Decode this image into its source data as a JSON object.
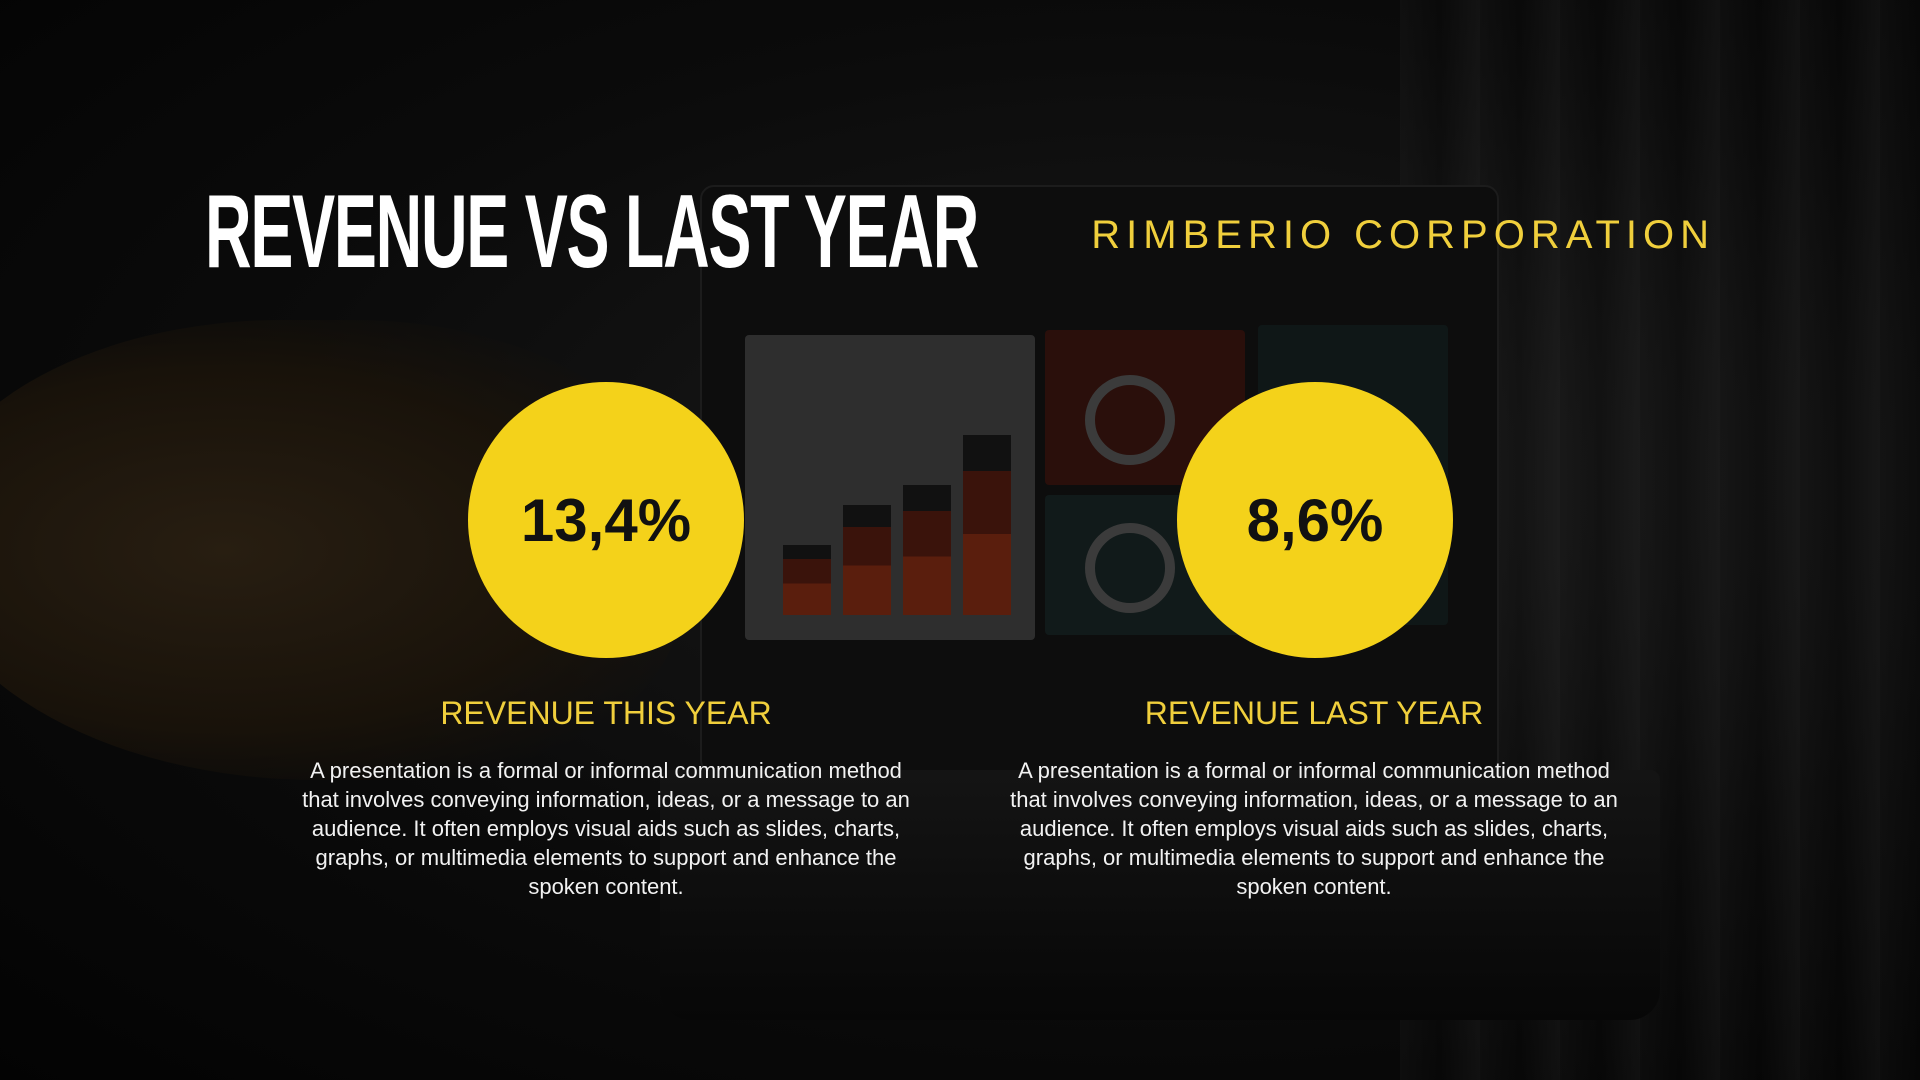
{
  "slide": {
    "title": "REVENUE VS LAST YEAR",
    "brand": "RIMBERIO CORPORATION"
  },
  "metrics": [
    {
      "value": "13,4%",
      "label": "REVENUE THIS YEAR",
      "description": "A presentation is a formal or informal communication method that involves conveying information, ideas, or a message to an audience. It often employs visual aids such as slides, charts, graphs, or multimedia elements to support and enhance the spoken content."
    },
    {
      "value": "8,6%",
      "label": "REVENUE LAST YEAR",
      "description": "A presentation is a formal or informal communication method that involves conveying information, ideas, or a message to an audience. It often employs visual aids such as slides, charts, graphs, or multimedia elements to support and enhance the spoken content."
    }
  ],
  "colors": {
    "accent": "#F4D21A",
    "accent_text": "#F0CF3C",
    "title_text": "#FFFFFF",
    "background": "#0B0B0B"
  }
}
